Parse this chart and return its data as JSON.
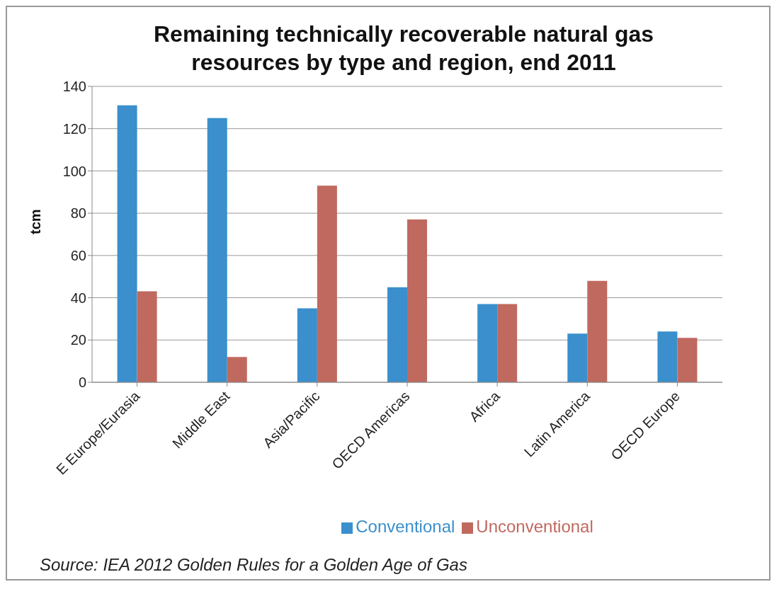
{
  "chart_data": {
    "type": "bar",
    "title": "Remaining technically recoverable natural gas resources by type and region, end 2011",
    "ylabel": "tcm",
    "categories": [
      "E Europe/Eurasia",
      "Middle East",
      "Asia/Pacific",
      "OECD Americas",
      "Africa",
      "Latin America",
      "OECD Europe"
    ],
    "series": [
      {
        "name": "Conventional",
        "color": "#3a8fcc",
        "values": [
          131,
          125,
          35,
          45,
          37,
          23,
          24
        ]
      },
      {
        "name": "Unconventional",
        "color": "#c0695f",
        "values": [
          43,
          12,
          93,
          77,
          37,
          48,
          21
        ]
      }
    ],
    "ylim": [
      0,
      140
    ],
    "yticks": [
      0,
      20,
      40,
      60,
      80,
      100,
      120,
      140
    ],
    "grid": "y",
    "legend": "bottom",
    "annotations": [
      "Source: IEA  2012 Golden Rules for a Golden Age of Gas"
    ]
  }
}
